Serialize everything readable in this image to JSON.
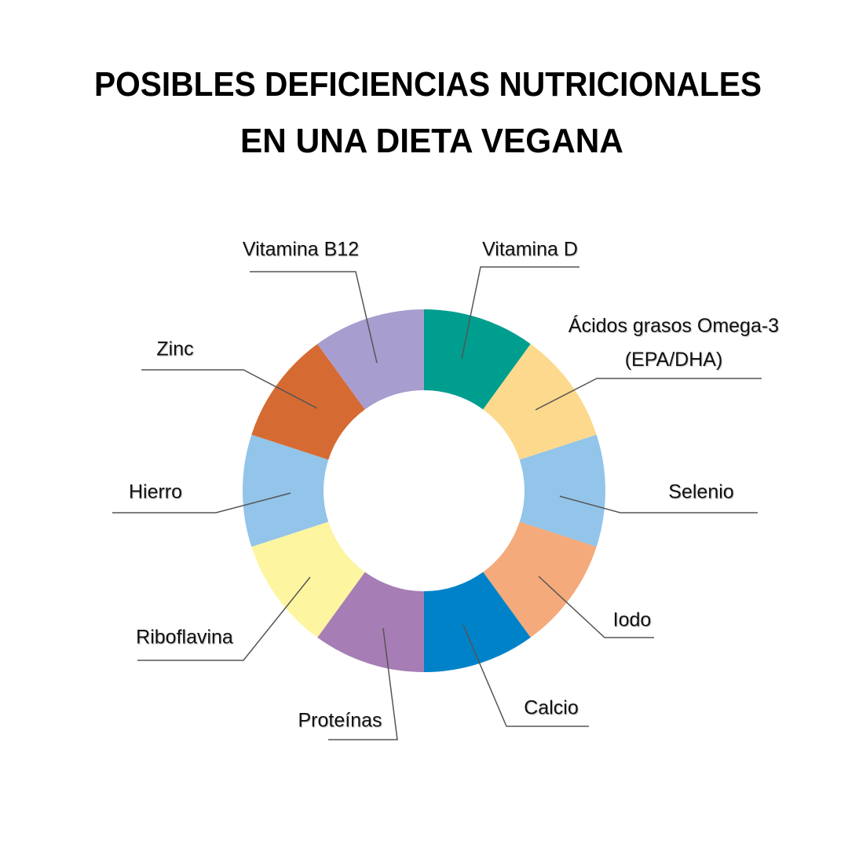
{
  "chart_data": {
    "type": "donut",
    "title": [
      "POSIBLES DEFICIENCIAS NUTRICIONALES",
      "EN UNA  DIETA VEGANA"
    ],
    "categories": [
      "Vitamina D",
      "Ácidos grasos Omega-3 (EPA/DHA)",
      "Selenio",
      "Iodo",
      "Calcio",
      "Proteínas",
      "Riboflavina",
      "Hierro",
      "Zinc",
      "Vitamina B12"
    ],
    "values": [
      10,
      10,
      10,
      10,
      10,
      10,
      10,
      10,
      10,
      10
    ],
    "colors": [
      "#009e8f",
      "#fcd98c",
      "#93c4ea",
      "#f4aa7a",
      "#0082c8",
      "#a67db5",
      "#fdf5a0",
      "#93c4ea",
      "#d56b32",
      "#a79dcf"
    ]
  }
}
